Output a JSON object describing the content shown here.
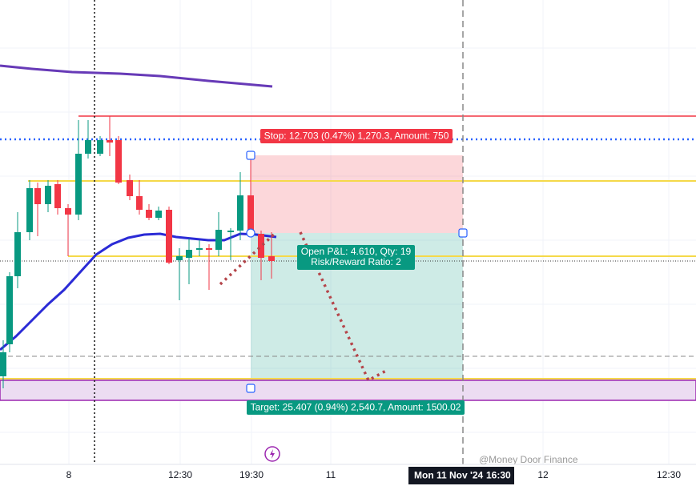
{
  "position_tool": {
    "stop_label": "Stop: 12.703 (0.47%) 1,270.3, Amount: 750",
    "pnl_label": "Open P&L: 4.610, Qty: 19",
    "ratio_label": "Risk/Reward Ratio: 2",
    "target_label": "Target: 25.407 (0.94%) 2,540.7, Amount: 1500.02"
  },
  "time_axis": {
    "labels": [
      "8",
      "12:30",
      "19:30",
      "11",
      "12",
      "12:30"
    ],
    "crosshair_date": "Mon 11 Nov '24",
    "crosshair_time": "16:30"
  },
  "watermark": "@Money Door Finance"
}
